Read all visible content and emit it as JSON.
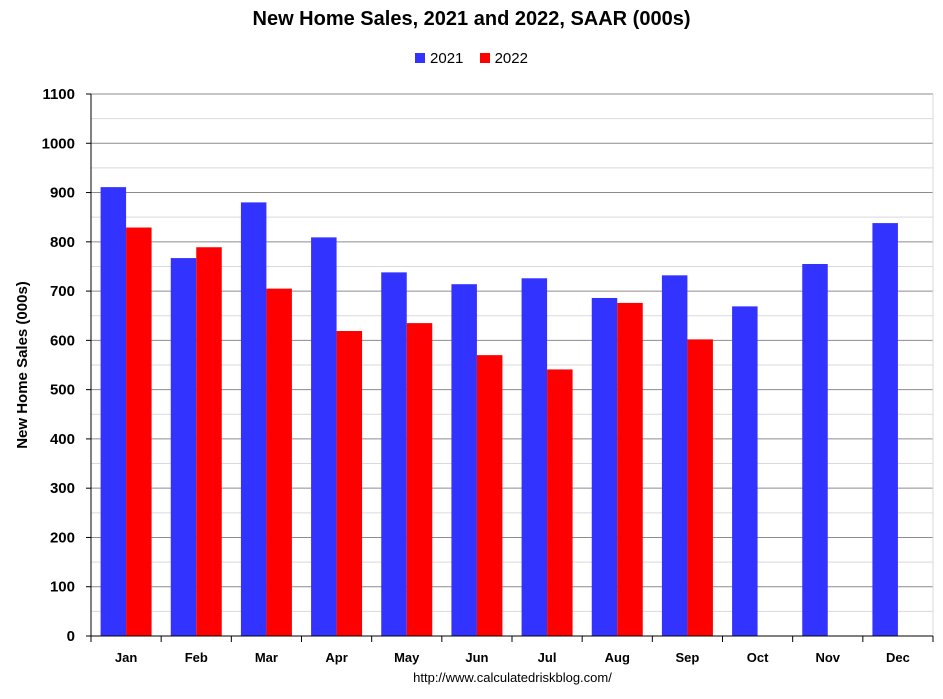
{
  "chart_data": {
    "type": "bar",
    "title": "New Home Sales,  2021 and 2022, SAAR (000s)",
    "ylabel": "New Home Sales (000s)",
    "xlabel": "",
    "categories": [
      "Jan",
      "Feb",
      "Mar",
      "Apr",
      "May",
      "Jun",
      "Jul",
      "Aug",
      "Sep",
      "Oct",
      "Nov",
      "Dec"
    ],
    "series": [
      {
        "name": "2021",
        "color": "#3333ff",
        "values": [
          911,
          767,
          880,
          809,
          738,
          714,
          726,
          686,
          732,
          669,
          755,
          838
        ]
      },
      {
        "name": "2022",
        "color": "#ff0000",
        "values": [
          829,
          789,
          705,
          619,
          635,
          570,
          541,
          676,
          602,
          null,
          null,
          null
        ]
      }
    ],
    "ylim": [
      0,
      1100
    ],
    "ytick_step": 100,
    "yticks": [
      "0",
      "100",
      "200",
      "300",
      "400",
      "500",
      "600",
      "700",
      "800",
      "900",
      "1000",
      "1100"
    ],
    "grid": true,
    "minor_grid": true,
    "legend_position": "top-center"
  },
  "source": "http://www.calculatedriskblog.com/"
}
